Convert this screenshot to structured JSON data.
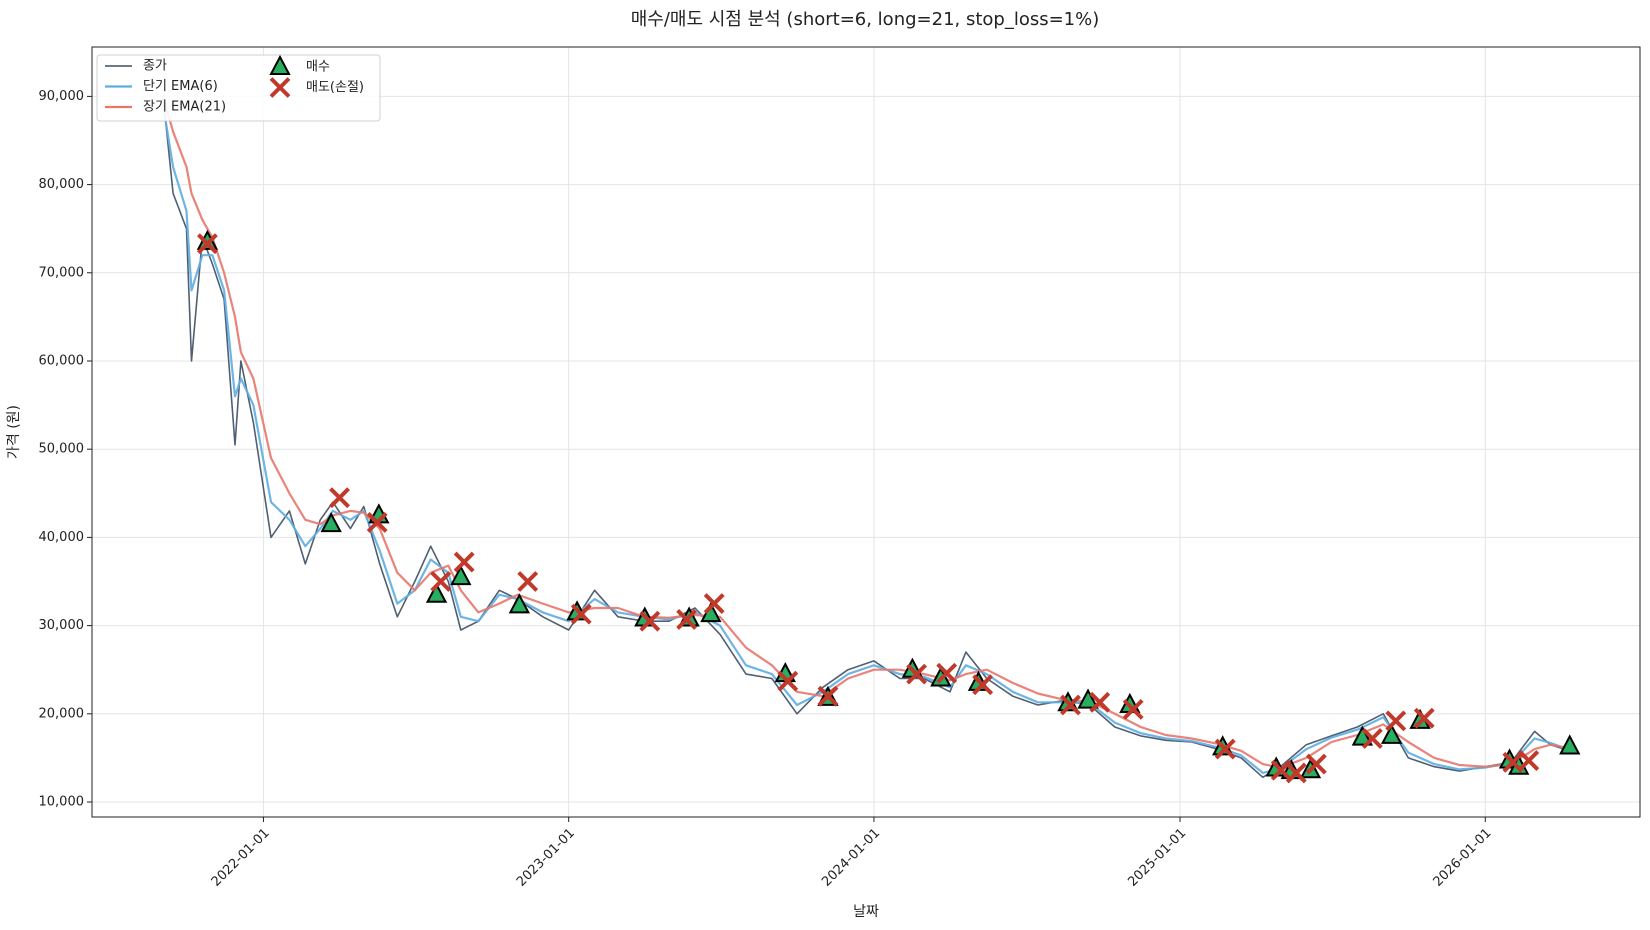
{
  "chart_data": {
    "type": "line",
    "title": "매수/매도 시점 분석 (short=6, long=21, stop_loss=1%)",
    "xlabel": "날짜",
    "ylabel": "가격 (원)",
    "x": [
      "2021-09-03",
      "2021-09-15",
      "2021-10-01",
      "2021-10-07",
      "2021-10-20",
      "2021-11-01",
      "2021-11-15",
      "2021-11-28",
      "2021-12-05",
      "2021-12-20",
      "2022-01-10",
      "2022-02-01",
      "2022-02-20",
      "2022-03-10",
      "2022-03-25",
      "2022-04-15",
      "2022-05-01",
      "2022-05-20",
      "2022-06-10",
      "2022-07-01",
      "2022-07-20",
      "2022-08-10",
      "2022-08-25",
      "2022-09-15",
      "2022-10-10",
      "2022-11-01",
      "2022-12-01",
      "2023-01-01",
      "2023-02-01",
      "2023-03-01",
      "2023-04-01",
      "2023-05-01",
      "2023-06-01",
      "2023-07-01",
      "2023-08-01",
      "2023-09-01",
      "2023-10-01",
      "2023-11-01",
      "2023-12-01",
      "2024-01-01",
      "2024-02-01",
      "2024-03-01",
      "2024-04-01",
      "2024-04-20",
      "2024-05-15",
      "2024-06-15",
      "2024-07-15",
      "2024-08-15",
      "2024-09-15",
      "2024-10-15",
      "2024-11-15",
      "2024-12-15",
      "2025-01-15",
      "2025-02-15",
      "2025-03-15",
      "2025-04-10",
      "2025-05-01",
      "2025-06-01",
      "2025-07-01",
      "2025-08-01",
      "2025-09-01",
      "2025-10-01",
      "2025-11-01",
      "2025-12-01",
      "2026-01-01",
      "2026-02-01",
      "2026-03-01",
      "2026-03-20",
      "2026-04-12"
    ],
    "series": [
      {
        "name": "종가",
        "color": "#3d4f63",
        "width": 1.6,
        "values": [
          90000,
          79000,
          75000,
          60000,
          74000,
          71000,
          67000,
          50500,
          60000,
          53000,
          40000,
          43000,
          37000,
          42000,
          44000,
          41000,
          43500,
          37000,
          31000,
          35000,
          39000,
          35000,
          29500,
          30500,
          34000,
          33000,
          31000,
          29500,
          34000,
          31000,
          30500,
          30500,
          32000,
          29000,
          24500,
          24000,
          20000,
          23000,
          25000,
          26000,
          24000,
          24000,
          22500,
          27000,
          24000,
          22000,
          21000,
          21500,
          21000,
          18500,
          17500,
          17000,
          16800,
          16000,
          15000,
          12800,
          14000,
          16500,
          17500,
          18500,
          20000,
          15000,
          14000,
          13500,
          14000,
          14500,
          18000,
          16500,
          15800
        ]
      },
      {
        "name": "단기 EMA(6)",
        "color": "#5dade2",
        "width": 2.2,
        "values": [
          89000,
          82000,
          77000,
          68000,
          72000,
          72000,
          68000,
          56000,
          58000,
          55000,
          44000,
          42000,
          39000,
          41000,
          43000,
          42000,
          43000,
          38500,
          32500,
          34000,
          37500,
          36000,
          31000,
          30500,
          33500,
          33000,
          31500,
          30500,
          33000,
          31500,
          31000,
          30700,
          31500,
          30000,
          25500,
          24500,
          21000,
          22500,
          24500,
          25500,
          24500,
          24200,
          23000,
          25500,
          24500,
          22500,
          21300,
          21300,
          21200,
          19000,
          17800,
          17200,
          16900,
          16200,
          15300,
          13300,
          13800,
          16000,
          17300,
          18200,
          19600,
          15600,
          14300,
          13700,
          13900,
          14400,
          17200,
          16700,
          15900
        ]
      },
      {
        "name": "장기 EMA(21)",
        "color": "#e8756a",
        "width": 2.2,
        "values": [
          90000,
          86000,
          82000,
          79000,
          76000,
          74000,
          70000,
          65000,
          61000,
          58000,
          49000,
          45000,
          42000,
          41500,
          42500,
          43000,
          42800,
          41000,
          36000,
          34000,
          36000,
          36800,
          34000,
          31500,
          32500,
          33500,
          32500,
          31500,
          32000,
          32000,
          31000,
          30900,
          31200,
          31000,
          27500,
          25500,
          22500,
          22000,
          24000,
          25000,
          25000,
          24500,
          23800,
          24500,
          25000,
          23500,
          22300,
          21600,
          21400,
          20000,
          18500,
          17600,
          17200,
          16600,
          15800,
          14300,
          13900,
          15000,
          16800,
          17600,
          18800,
          16800,
          15000,
          14200,
          14000,
          14300,
          16000,
          16500,
          16100
        ]
      }
    ],
    "markers": [
      {
        "name": "매수",
        "color": "#27ae60",
        "marker": "triangle",
        "x": [
          "2021-10-26",
          "2022-03-23",
          "2022-05-19",
          "2022-07-27",
          "2022-08-25",
          "2022-11-03",
          "2023-01-11",
          "2023-04-02",
          "2023-05-25",
          "2023-06-20",
          "2023-09-17",
          "2023-11-07",
          "2024-02-16",
          "2024-03-21",
          "2024-05-05",
          "2024-08-20",
          "2024-09-13",
          "2024-11-02",
          "2025-02-21",
          "2025-04-26",
          "2025-05-14",
          "2025-06-06",
          "2025-08-07",
          "2025-09-11",
          "2025-10-15",
          "2026-01-30",
          "2026-02-10",
          "2026-04-12"
        ],
        "values": [
          73500,
          41500,
          42500,
          33500,
          35500,
          32300,
          31500,
          30800,
          30800,
          31300,
          24500,
          21800,
          25000,
          24000,
          23500,
          21200,
          21500,
          21000,
          16200,
          13800,
          13500,
          13600,
          17300,
          17500,
          19200,
          14700,
          14000,
          16300
        ]
      },
      {
        "name": "매도(손절)",
        "color": "#c0392b",
        "marker": "x",
        "x": [
          "2021-10-26",
          "2022-04-02",
          "2022-05-17",
          "2022-08-01",
          "2022-08-29",
          "2022-11-13",
          "2023-01-16",
          "2023-04-08",
          "2023-05-22",
          "2023-06-24",
          "2023-09-20",
          "2023-11-07",
          "2024-02-21",
          "2024-03-28",
          "2024-05-10",
          "2024-08-23",
          "2024-09-27",
          "2024-11-06",
          "2025-02-24",
          "2025-05-02",
          "2025-05-20",
          "2025-06-13",
          "2025-08-19",
          "2025-09-16",
          "2025-10-20",
          "2026-02-03",
          "2026-02-22"
        ],
        "values": [
          73300,
          44500,
          41700,
          35000,
          37200,
          35000,
          31300,
          30500,
          30700,
          32500,
          23700,
          22000,
          24500,
          24600,
          23300,
          21000,
          21300,
          20500,
          16000,
          13600,
          13300,
          14300,
          17200,
          19200,
          19500,
          14500,
          14700
        ]
      }
    ],
    "xlim": [
      "2021-06-10",
      "2026-07-05"
    ],
    "xticks": [
      "2022-01-01",
      "2023-01-01",
      "2024-01-01",
      "2025-01-01",
      "2026-01-01"
    ],
    "ylim": [
      8300,
      95600
    ],
    "yticks": [
      {
        "value": 10000,
        "label": "10,000"
      },
      {
        "value": 20000,
        "label": "20,000"
      },
      {
        "value": 30000,
        "label": "30,000"
      },
      {
        "value": 40000,
        "label": "40,000"
      },
      {
        "value": 50000,
        "label": "50,000"
      },
      {
        "value": 60000,
        "label": "60,000"
      },
      {
        "value": 70000,
        "label": "70,000"
      },
      {
        "value": 80000,
        "label": "80,000"
      },
      {
        "value": 90000,
        "label": "90,000"
      }
    ],
    "grid": true,
    "legend": "upper left"
  }
}
